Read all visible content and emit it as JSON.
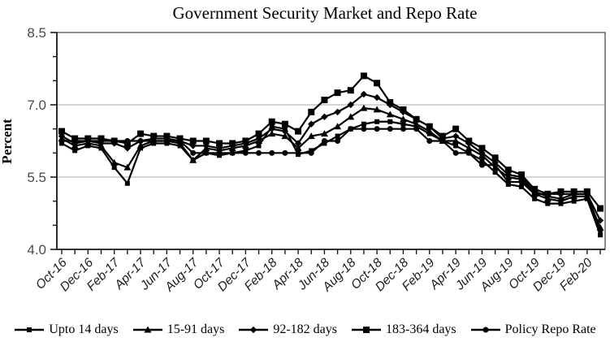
{
  "title": "Government Security Market and Repo Rate",
  "y_axis": {
    "title": "Percent",
    "min": 4.0,
    "max": 8.5,
    "major_ticks": [
      4.0,
      5.5,
      7.0,
      8.5
    ],
    "major_tick_labels": [
      "4.0",
      "5.5",
      "7.0",
      "8.5"
    ],
    "minor_ticks": [
      4.5,
      5.0,
      6.0,
      6.5,
      7.5,
      8.0
    ],
    "gridlines": [
      5.5,
      7.0
    ]
  },
  "x_axis": {
    "label_every": 2,
    "shown_tick_labels": [
      "Oct-16",
      "Dec-16",
      "Feb-17",
      "Apr-17",
      "Jun-17",
      "Aug-17",
      "Oct-17",
      "Dec-17",
      "Feb-18",
      "Apr-18",
      "Jun-18",
      "Aug-18",
      "Oct-18",
      "Dec-18",
      "Feb-19",
      "Apr-19",
      "Jun-19",
      "Aug-19",
      "Oct-19",
      "Dec-19",
      "Feb-20"
    ]
  },
  "chart_data": {
    "type": "line",
    "title": "Government Security Market and Repo Rate",
    "ylabel": "Percent",
    "ylim": [
      4.0,
      8.5
    ],
    "grid": "horizontal-at-5.5-and-7.0",
    "legend_position": "bottom",
    "x": [
      "Oct-16",
      "Nov-16",
      "Dec-16",
      "Jan-17",
      "Feb-17",
      "Mar-17",
      "Apr-17",
      "May-17",
      "Jun-17",
      "Jul-17",
      "Aug-17",
      "Sep-17",
      "Oct-17",
      "Nov-17",
      "Dec-17",
      "Jan-18",
      "Feb-18",
      "Mar-18",
      "Apr-18",
      "May-18",
      "Jun-18",
      "Jul-18",
      "Aug-18",
      "Sep-18",
      "Oct-18",
      "Nov-18",
      "Dec-18",
      "Jan-19",
      "Feb-19",
      "Mar-19",
      "Apr-19",
      "May-19",
      "Jun-19",
      "Jul-19",
      "Aug-19",
      "Sep-19",
      "Oct-19",
      "Nov-19",
      "Dec-19",
      "Jan-20",
      "Feb-20",
      "Mar-20"
    ],
    "series": [
      {
        "name": "Upto 14 days",
        "marker": "square-small",
        "values": [
          6.2,
          6.05,
          6.15,
          6.1,
          5.7,
          5.37,
          6.1,
          6.2,
          6.2,
          6.15,
          5.85,
          6.0,
          5.95,
          6.0,
          6.05,
          6.15,
          6.55,
          6.5,
          5.97,
          6.05,
          6.2,
          6.35,
          6.5,
          6.6,
          6.65,
          6.65,
          6.6,
          6.55,
          6.4,
          6.25,
          6.15,
          6.0,
          5.85,
          5.6,
          5.35,
          5.3,
          5.05,
          4.95,
          4.95,
          5.0,
          5.05,
          4.3
        ]
      },
      {
        "name": "15-91 days",
        "marker": "triangle",
        "values": [
          6.3,
          6.15,
          6.2,
          6.15,
          5.8,
          5.7,
          6.15,
          6.25,
          6.25,
          6.2,
          5.85,
          6.1,
          6.05,
          6.1,
          6.15,
          6.25,
          6.4,
          6.35,
          6.1,
          6.35,
          6.4,
          6.55,
          6.75,
          6.93,
          6.9,
          6.8,
          6.7,
          6.6,
          6.45,
          6.25,
          6.25,
          6.1,
          5.95,
          5.7,
          5.5,
          5.45,
          5.15,
          5.05,
          5.0,
          5.1,
          5.1,
          4.45
        ]
      },
      {
        "name": "92-182 days",
        "marker": "diamond",
        "values": [
          6.35,
          6.2,
          6.25,
          6.2,
          6.2,
          6.1,
          6.25,
          6.3,
          6.3,
          6.25,
          6.15,
          6.15,
          6.1,
          6.15,
          6.2,
          6.3,
          6.5,
          6.45,
          6.2,
          6.6,
          6.75,
          6.85,
          7.0,
          7.22,
          7.15,
          7.0,
          6.85,
          6.7,
          6.55,
          6.3,
          6.35,
          6.2,
          6.0,
          5.8,
          5.55,
          5.5,
          5.2,
          5.1,
          5.05,
          5.15,
          5.15,
          4.6
        ]
      },
      {
        "name": "183-364 days",
        "marker": "square-large",
        "values": [
          6.45,
          6.3,
          6.3,
          6.3,
          6.25,
          6.2,
          6.4,
          6.35,
          6.35,
          6.3,
          6.25,
          6.25,
          6.2,
          6.2,
          6.25,
          6.4,
          6.65,
          6.6,
          6.45,
          6.85,
          7.1,
          7.25,
          7.3,
          7.6,
          7.45,
          7.05,
          6.9,
          6.7,
          6.55,
          6.35,
          6.5,
          6.25,
          6.1,
          5.9,
          5.65,
          5.55,
          5.25,
          5.15,
          5.2,
          5.2,
          5.2,
          4.85
        ]
      },
      {
        "name": "Policy Repo Rate",
        "marker": "circle",
        "values": [
          6.25,
          6.25,
          6.25,
          6.25,
          6.25,
          6.25,
          6.25,
          6.25,
          6.25,
          6.25,
          6.0,
          6.0,
          6.0,
          6.0,
          6.0,
          6.0,
          6.0,
          6.0,
          6.0,
          6.0,
          6.25,
          6.25,
          6.5,
          6.5,
          6.5,
          6.5,
          6.5,
          6.5,
          6.25,
          6.25,
          6.0,
          6.0,
          5.75,
          5.75,
          5.4,
          5.4,
          5.15,
          5.15,
          5.15,
          5.15,
          5.15,
          4.4
        ]
      }
    ]
  },
  "colors": {
    "series_line": "#000000",
    "gridline": "#a9a9a9",
    "frame": "#3f3f3f",
    "axis": "#1a1a1a",
    "y_tick_label": "#4a4a4a",
    "x_tick_label": "#1a1a1a",
    "title_text": "#000000"
  }
}
